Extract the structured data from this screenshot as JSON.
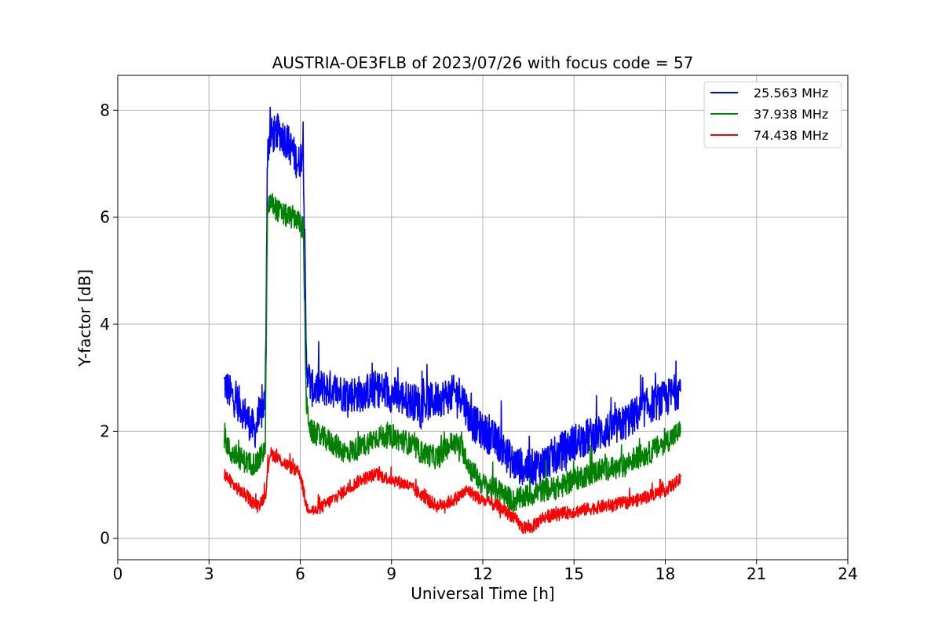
{
  "chart_data": {
    "type": "line",
    "title": "AUSTRIA-OE3FLB of 2023/07/26 with focus code = 57",
    "xlabel": "Universal Time [h]",
    "ylabel": "Y-factor [dB]",
    "xlim": [
      0,
      24
    ],
    "ylim": [
      -0.4,
      8.65
    ],
    "xticks": [
      0,
      3,
      6,
      9,
      12,
      15,
      18,
      21,
      24
    ],
    "yticks": [
      0,
      2,
      4,
      6,
      8
    ],
    "xtick_labels": [
      "0",
      "3",
      "6",
      "9",
      "12",
      "15",
      "18",
      "21",
      "24"
    ],
    "ytick_labels": [
      "0",
      "2",
      "4",
      "6",
      "8"
    ],
    "grid": true,
    "legend_position": "top-right",
    "series": [
      {
        "name": "25.563 MHz",
        "color": "#0000ff",
        "noise": 0.35,
        "x": [
          3.5,
          3.7,
          4.0,
          4.3,
          4.5,
          4.7,
          4.85,
          4.92,
          5.0,
          5.3,
          5.6,
          5.85,
          5.95,
          6.1,
          6.2,
          6.35,
          7.0,
          7.5,
          8.0,
          8.5,
          9.0,
          9.5,
          10.0,
          10.5,
          11.0,
          11.3,
          11.6,
          12.0,
          12.5,
          13.0,
          13.5,
          14.0,
          14.5,
          15.0,
          15.5,
          16.0,
          16.5,
          17.0,
          17.5,
          18.0,
          18.5
        ],
        "y": [
          2.9,
          2.7,
          2.5,
          2.2,
          2.0,
          2.3,
          2.6,
          7.2,
          7.5,
          7.6,
          7.4,
          7.1,
          7.0,
          7.3,
          3.3,
          2.8,
          2.8,
          2.7,
          2.7,
          2.8,
          2.7,
          2.6,
          2.5,
          2.6,
          2.7,
          2.7,
          2.2,
          2.0,
          1.8,
          1.4,
          1.3,
          1.4,
          1.6,
          1.8,
          1.9,
          2.0,
          2.1,
          2.3,
          2.5,
          2.6,
          2.8
        ]
      },
      {
        "name": "37.938 MHz",
        "color": "#008000",
        "noise": 0.22,
        "x": [
          3.5,
          3.7,
          4.0,
          4.3,
          4.6,
          4.85,
          4.92,
          5.0,
          5.3,
          5.6,
          5.85,
          5.95,
          6.1,
          6.2,
          6.35,
          7.0,
          7.5,
          8.0,
          8.5,
          9.0,
          9.5,
          10.0,
          10.5,
          11.0,
          11.3,
          11.6,
          12.0,
          12.5,
          13.0,
          13.5,
          14.0,
          14.5,
          15.0,
          15.5,
          16.0,
          16.5,
          17.0,
          17.5,
          18.0,
          18.5
        ],
        "y": [
          1.9,
          1.6,
          1.5,
          1.4,
          1.4,
          1.7,
          6.0,
          6.3,
          6.1,
          6.0,
          6.0,
          5.9,
          5.8,
          2.5,
          2.0,
          1.8,
          1.6,
          1.7,
          1.9,
          1.9,
          1.8,
          1.6,
          1.5,
          1.8,
          1.7,
          1.3,
          1.0,
          0.9,
          0.7,
          0.8,
          0.9,
          0.95,
          1.1,
          1.2,
          1.3,
          1.3,
          1.5,
          1.6,
          1.8,
          2.0
        ]
      },
      {
        "name": "74.438 MHz",
        "color": "#ff0000",
        "noise": 0.12,
        "x": [
          3.5,
          3.8,
          4.0,
          4.3,
          4.6,
          4.85,
          5.0,
          5.5,
          6.0,
          6.2,
          6.5,
          7.0,
          7.5,
          8.0,
          8.5,
          9.0,
          9.5,
          10.0,
          10.5,
          11.0,
          11.5,
          12.0,
          12.5,
          13.0,
          13.3,
          13.6,
          14.0,
          14.5,
          15.0,
          15.5,
          16.0,
          16.5,
          17.0,
          17.5,
          18.0,
          18.5
        ],
        "y": [
          1.2,
          1.0,
          0.9,
          0.75,
          0.6,
          0.8,
          1.6,
          1.4,
          1.2,
          0.6,
          0.5,
          0.7,
          0.9,
          1.1,
          1.2,
          1.1,
          1.0,
          0.8,
          0.6,
          0.7,
          0.9,
          0.7,
          0.6,
          0.4,
          0.2,
          0.2,
          0.4,
          0.45,
          0.5,
          0.55,
          0.6,
          0.65,
          0.7,
          0.8,
          0.9,
          1.1
        ]
      }
    ]
  }
}
